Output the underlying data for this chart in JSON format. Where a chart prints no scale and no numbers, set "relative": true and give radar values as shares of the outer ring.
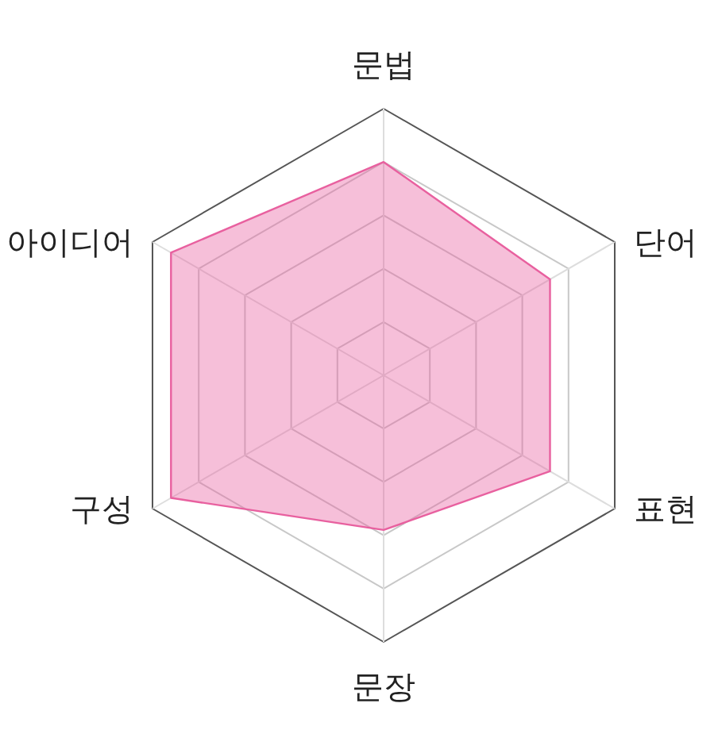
{
  "chart_data": {
    "type": "radar",
    "categories": [
      "문법",
      "단어",
      "표현",
      "문장",
      "구성",
      "아이디어"
    ],
    "relative": true,
    "grid": true,
    "series": [
      {
        "color": "#e8609f",
        "values": [
          0.8,
          0.72,
          0.72,
          0.58,
          0.92,
          0.92
        ]
      }
    ]
  }
}
